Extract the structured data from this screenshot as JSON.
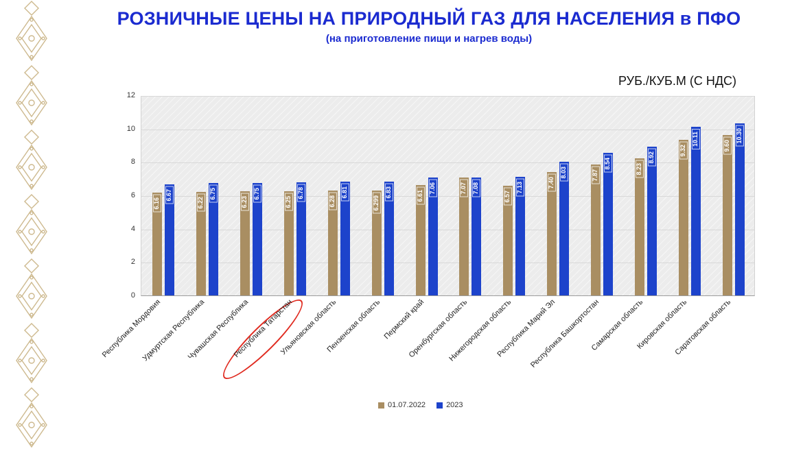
{
  "title": "РОЗНИЧНЫЕ ЦЕНЫ НА ПРИРОДНЫЙ ГАЗ ДЛЯ НАСЕЛЕНИЯ в ПФО",
  "subtitle": "(на приготовление пищи и нагрев воды)",
  "unit_label": "РУБ./КУБ.М (С НДС)",
  "colors": {
    "title": "#1b2bd0",
    "series_2022": "#a98e62",
    "series_2023": "#1d43cb",
    "highlight": "#e02b20",
    "plot_bg": "#ececec",
    "grid": "#d8d8d8",
    "ornament": "#cdb98e"
  },
  "chart_data": {
    "type": "bar",
    "categories": [
      "Республика Мордовия",
      "Удмуртская Республика",
      "Чувашская Республика",
      "Республика Татарстан",
      "Ульяновская область",
      "Пензенская область",
      "Пермский край",
      "Оренбургская область",
      "Нижегородская область",
      "Республика Марий Эл",
      "Республика Башкортостан",
      "Самарская область",
      "Кировская область",
      "Саратовская область"
    ],
    "series": [
      {
        "name": "01.07.2022",
        "color": "#a98e62",
        "values": [
          "6.16",
          "6.22",
          "6.23",
          "6.25",
          "6.28",
          "6.299",
          "6.61",
          "7.07",
          "6.57",
          "7.40",
          "7.87",
          "8.23",
          "9.32",
          "9.60"
        ]
      },
      {
        "name": "2023",
        "color": "#1d43cb",
        "values": [
          "6.67",
          "6.75",
          "6.75",
          "6.78",
          "6.81",
          "6.83",
          "7.06",
          "7.08",
          "7.13",
          "8.03",
          "8.54",
          "8.92",
          "10.11",
          "10.30"
        ]
      }
    ],
    "ylim": [
      0,
      12
    ],
    "yticks": [
      0,
      2,
      4,
      6,
      8,
      10,
      12
    ],
    "grid": true,
    "legend_position": "bottom",
    "highlighted_category": "Республика Татарстан"
  }
}
